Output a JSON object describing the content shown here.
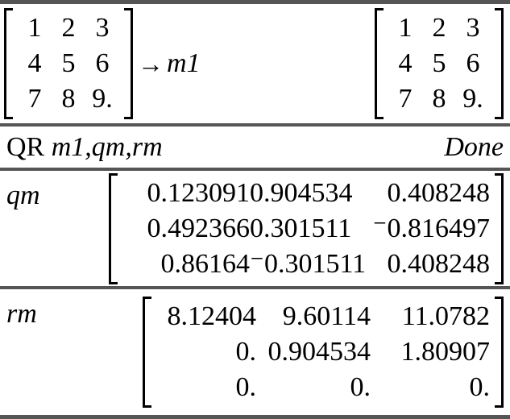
{
  "colors": {
    "background": "#ffffff",
    "text": "#000000",
    "separator": "#555555"
  },
  "rows": [
    {
      "type": "assignment",
      "input_matrix": [
        [
          "1",
          "2",
          "3"
        ],
        [
          "4",
          "5",
          "6"
        ],
        [
          "7",
          "8",
          "9."
        ]
      ],
      "arrow": "→",
      "var": "m1",
      "result_matrix": [
        [
          "1",
          "2",
          "3"
        ],
        [
          "4",
          "5",
          "6"
        ],
        [
          "7",
          "8",
          "9."
        ]
      ]
    },
    {
      "type": "command",
      "command": "QR",
      "args": "m1,qm,rm",
      "result": "Done"
    },
    {
      "type": "value",
      "var": "qm",
      "matrix": [
        [
          "0.123091",
          "0.904534",
          "0.408248"
        ],
        [
          "0.492366",
          "0.301511",
          "⁻0.816497"
        ],
        [
          "0.86164",
          "⁻0.301511",
          "0.408248"
        ]
      ]
    },
    {
      "type": "value",
      "var": "rm",
      "matrix": [
        [
          "8.12404",
          "9.60114",
          "11.0782"
        ],
        [
          "0.",
          "0.904534",
          "1.80907"
        ],
        [
          "0.",
          "0.",
          "0."
        ]
      ]
    }
  ]
}
